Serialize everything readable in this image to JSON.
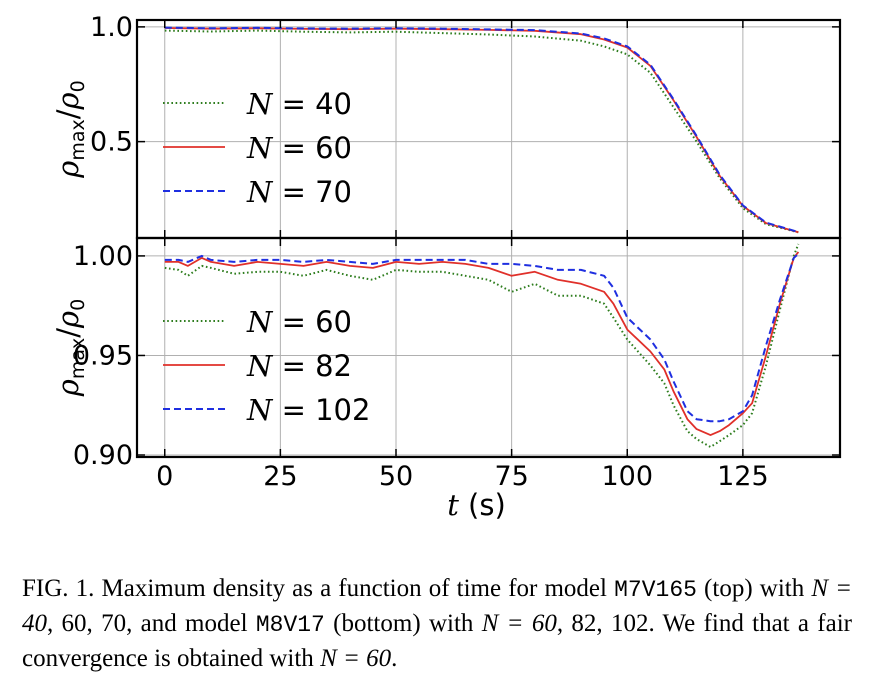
{
  "chart_data": [
    {
      "type": "line",
      "panel": "top",
      "xlabel": "",
      "ylabel": "ρmax/ρ0",
      "xlim": [
        -6,
        146
      ],
      "ylim": [
        0.08,
        1.03
      ],
      "xticks": [
        0,
        25,
        50,
        75,
        100,
        125
      ],
      "xtick_labels": [
        "",
        "",
        "",
        "",
        "",
        ""
      ],
      "yticks": [
        0.5,
        1.0
      ],
      "ytick_labels": [
        "0.5",
        "1.0"
      ],
      "grid": true,
      "legend_position": "left",
      "series": [
        {
          "name": "N = 40",
          "legend_var": "N",
          "legend_val": "40",
          "color": "#2e7d1e",
          "style": "dotted",
          "x": [
            0,
            10,
            20,
            30,
            40,
            50,
            60,
            70,
            80,
            90,
            95,
            100,
            105,
            110,
            115,
            120,
            125,
            130,
            137
          ],
          "y": [
            0.984,
            0.98,
            0.984,
            0.979,
            0.976,
            0.979,
            0.973,
            0.967,
            0.958,
            0.94,
            0.915,
            0.88,
            0.8,
            0.65,
            0.5,
            0.34,
            0.21,
            0.14,
            0.105
          ]
        },
        {
          "name": "N = 60",
          "legend_var": "N",
          "legend_val": "60",
          "color": "#e0302a",
          "style": "solid",
          "x": [
            0,
            10,
            20,
            30,
            40,
            50,
            60,
            70,
            80,
            90,
            95,
            100,
            105,
            110,
            115,
            120,
            125,
            130,
            137
          ],
          "y": [
            0.995,
            0.992,
            0.994,
            0.991,
            0.99,
            0.992,
            0.99,
            0.987,
            0.983,
            0.968,
            0.945,
            0.91,
            0.83,
            0.68,
            0.52,
            0.35,
            0.22,
            0.145,
            0.105
          ]
        },
        {
          "name": "N = 70",
          "legend_var": "N",
          "legend_val": "70",
          "color": "#1f2fe0",
          "style": "dashed",
          "x": [
            0,
            10,
            20,
            30,
            40,
            50,
            60,
            70,
            80,
            90,
            95,
            100,
            105,
            110,
            115,
            120,
            125,
            130,
            137
          ],
          "y": [
            0.997,
            0.994,
            0.996,
            0.993,
            0.992,
            0.994,
            0.992,
            0.989,
            0.986,
            0.971,
            0.95,
            0.915,
            0.835,
            0.685,
            0.525,
            0.355,
            0.222,
            0.147,
            0.106
          ]
        }
      ]
    },
    {
      "type": "line",
      "panel": "bottom",
      "xlabel": "t (s)",
      "xlabel_var": "t",
      "xlabel_unit": " (s)",
      "ylabel": "ρmax/ρ0",
      "xlim": [
        -6,
        146
      ],
      "ylim": [
        0.899,
        1.009
      ],
      "xticks": [
        0,
        25,
        50,
        75,
        100,
        125
      ],
      "xtick_labels": [
        "0",
        "25",
        "50",
        "75",
        "100",
        "125"
      ],
      "yticks": [
        0.9,
        0.95,
        1.0
      ],
      "ytick_labels": [
        "0.90",
        "0.95",
        "1.00"
      ],
      "grid": true,
      "legend_position": "left",
      "series": [
        {
          "name": "N = 60",
          "legend_var": "N",
          "legend_val": "60",
          "color": "#2e7d1e",
          "style": "dotted",
          "x": [
            0,
            3,
            5,
            8,
            10,
            15,
            20,
            25,
            30,
            35,
            40,
            45,
            50,
            55,
            60,
            65,
            70,
            75,
            80,
            85,
            90,
            95,
            97,
            100,
            105,
            108,
            110,
            113,
            115,
            118,
            120,
            122,
            125,
            127,
            130,
            133,
            136,
            137
          ],
          "y": [
            0.994,
            0.993,
            0.99,
            0.995,
            0.994,
            0.991,
            0.992,
            0.992,
            0.99,
            0.993,
            0.99,
            0.988,
            0.993,
            0.992,
            0.992,
            0.99,
            0.988,
            0.982,
            0.986,
            0.98,
            0.98,
            0.976,
            0.969,
            0.958,
            0.945,
            0.936,
            0.925,
            0.912,
            0.908,
            0.904,
            0.907,
            0.91,
            0.915,
            0.921,
            0.945,
            0.973,
            1.0,
            1.006
          ]
        },
        {
          "name": "N = 82",
          "legend_var": "N",
          "legend_val": "82",
          "color": "#e0302a",
          "style": "solid",
          "x": [
            0,
            3,
            5,
            8,
            10,
            15,
            20,
            25,
            30,
            35,
            40,
            45,
            50,
            55,
            60,
            65,
            70,
            75,
            80,
            85,
            90,
            95,
            97,
            100,
            105,
            108,
            110,
            113,
            115,
            118,
            120,
            122,
            125,
            127,
            130,
            133,
            136,
            137
          ],
          "y": [
            0.997,
            0.997,
            0.995,
            0.999,
            0.997,
            0.995,
            0.997,
            0.996,
            0.995,
            0.997,
            0.995,
            0.994,
            0.997,
            0.996,
            0.997,
            0.996,
            0.994,
            0.99,
            0.992,
            0.988,
            0.986,
            0.982,
            0.976,
            0.963,
            0.952,
            0.943,
            0.932,
            0.918,
            0.913,
            0.91,
            0.912,
            0.915,
            0.921,
            0.926,
            0.95,
            0.976,
            0.999,
            1.002
          ]
        },
        {
          "name": "N = 102",
          "legend_var": "N",
          "legend_val": "102",
          "color": "#1f2fe0",
          "style": "dashed",
          "x": [
            0,
            3,
            5,
            8,
            10,
            15,
            20,
            25,
            30,
            35,
            40,
            45,
            50,
            55,
            60,
            65,
            70,
            75,
            80,
            85,
            90,
            95,
            97,
            100,
            105,
            108,
            110,
            113,
            115,
            118,
            120,
            122,
            125,
            127,
            130,
            133,
            136,
            137
          ],
          "y": [
            0.998,
            0.998,
            0.997,
            1.0,
            0.998,
            0.997,
            0.998,
            0.998,
            0.997,
            0.998,
            0.997,
            0.996,
            0.998,
            0.998,
            0.998,
            0.998,
            0.996,
            0.996,
            0.995,
            0.993,
            0.993,
            0.99,
            0.984,
            0.969,
            0.958,
            0.948,
            0.937,
            0.922,
            0.918,
            0.917,
            0.917,
            0.918,
            0.922,
            0.93,
            0.955,
            0.978,
            0.999,
            1.001
          ]
        }
      ]
    }
  ],
  "caption": {
    "lead": "FIG. 1.",
    "text1": " Maximum density as a function of time for model ",
    "model1": "M7V165",
    "text2": " (top) with ",
    "math1": "N = 40",
    "text3": ", 60, 70, and model ",
    "model2": "M8V17",
    "text4": " (bottom) with ",
    "math2": "N = 60",
    "text5": ", 82, 102. We find that a fair convergence is obtained with ",
    "math3": "N = 60",
    "text6": "."
  }
}
